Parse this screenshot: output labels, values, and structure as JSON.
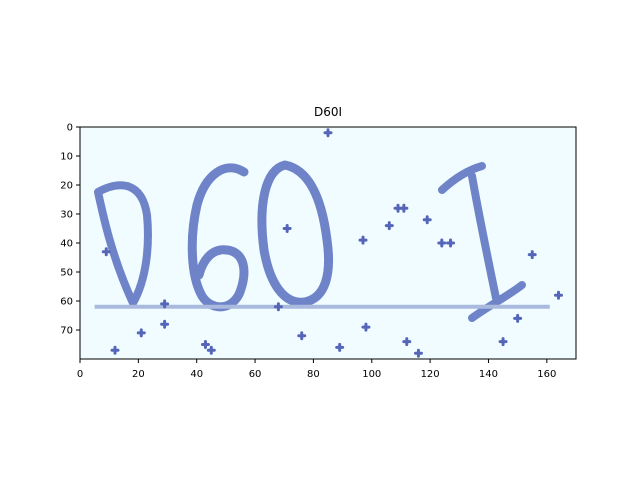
{
  "chart_data": {
    "type": "image",
    "title": "D60I",
    "captcha_text": "D60I",
    "xlim": [
      0,
      170
    ],
    "ylim": [
      80,
      0
    ],
    "x_ticks": [
      0,
      20,
      40,
      60,
      80,
      100,
      120,
      140,
      160
    ],
    "y_ticks": [
      0,
      10,
      20,
      30,
      40,
      50,
      60,
      70
    ],
    "x_tick_labels": [
      "0",
      "20",
      "40",
      "60",
      "80",
      "100",
      "120",
      "140",
      "160"
    ],
    "y_tick_labels": [
      "0",
      "10",
      "20",
      "30",
      "40",
      "50",
      "60",
      "70"
    ],
    "strike_line": {
      "x": [
        5,
        161
      ],
      "y": 62
    },
    "noise_points": [
      [
        85,
        2
      ],
      [
        71,
        35
      ],
      [
        97,
        39
      ],
      [
        106,
        34
      ],
      [
        109,
        28
      ],
      [
        111,
        28
      ],
      [
        119,
        32
      ],
      [
        124,
        40
      ],
      [
        127,
        40
      ],
      [
        155,
        44
      ],
      [
        164,
        58
      ],
      [
        150,
        66
      ],
      [
        145,
        74
      ],
      [
        112,
        74
      ],
      [
        116,
        78
      ],
      [
        98,
        69
      ],
      [
        89,
        76
      ],
      [
        76,
        72
      ],
      [
        68,
        62
      ],
      [
        45,
        77
      ],
      [
        43,
        75
      ],
      [
        29,
        68
      ],
      [
        29,
        61
      ],
      [
        21,
        71
      ],
      [
        12,
        77
      ],
      [
        9,
        43
      ]
    ],
    "colors": {
      "background": "#f0fcff",
      "ink": "#6f84c8",
      "ink_dark": "#5566b8",
      "line": "#a9bade"
    }
  }
}
